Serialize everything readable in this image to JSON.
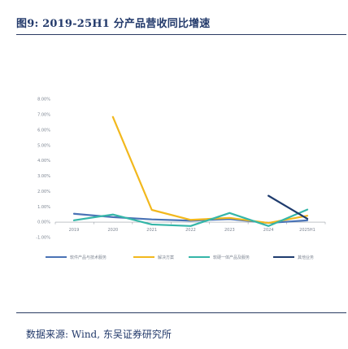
{
  "figure": {
    "title": "图9:  2019-25H1 分产品营收同比增速",
    "source": "数据来源:  Wind,  东吴证券研究所"
  },
  "chart_data": {
    "type": "line",
    "title": "",
    "xlabel": "",
    "ylabel": "",
    "categories": [
      "2019",
      "2020",
      "2021",
      "2022",
      "2023",
      "2024",
      "2025H1"
    ],
    "ylim": [
      -1.0,
      8.0
    ],
    "yticks": [
      "-1.00%",
      "0.00%",
      "1.00%",
      "2.00%",
      "3.00%",
      "4.00%",
      "5.00%",
      "6.00%",
      "7.00%",
      "8.00%"
    ],
    "grid": false,
    "legend_position": "bottom",
    "series": [
      {
        "name": "软件产品与技术服务",
        "color": "#4a73b5",
        "values": [
          0.55,
          0.33,
          0.18,
          0.1,
          0.2,
          -0.05,
          0.12
        ]
      },
      {
        "name": "解决方案",
        "color": "#f2b81d",
        "values": [
          null,
          6.85,
          0.8,
          0.15,
          0.28,
          -0.05,
          0.42
        ]
      },
      {
        "name": "软硬一体产品及服务",
        "color": "#35b6a8",
        "values": [
          0.12,
          0.5,
          -0.15,
          -0.25,
          0.6,
          -0.25,
          0.82
        ]
      },
      {
        "name": "其他业务",
        "color": "#1f3c6e",
        "values": [
          null,
          null,
          null,
          null,
          null,
          1.72,
          0.22
        ]
      }
    ]
  }
}
